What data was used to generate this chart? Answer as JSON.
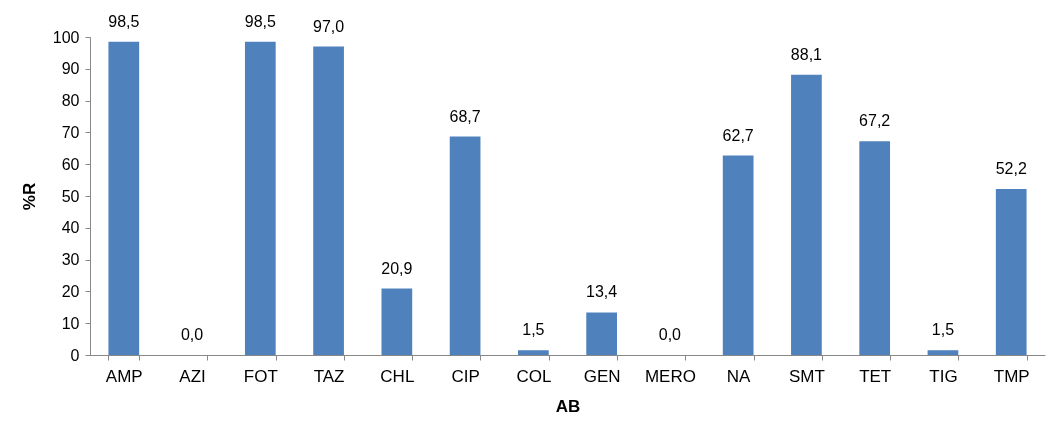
{
  "chart_data": {
    "type": "bar",
    "xlabel": "AB",
    "ylabel": "%R",
    "categories": [
      "AMP",
      "AZI",
      "FOT",
      "TAZ",
      "CHL",
      "CIP",
      "COL",
      "GEN",
      "MERO",
      "NA",
      "SMT",
      "TET",
      "TIG",
      "TMP"
    ],
    "values": [
      98.5,
      0,
      98.5,
      97.0,
      20.9,
      68.7,
      1.5,
      13.4,
      0,
      62.7,
      88.1,
      67.2,
      1.5,
      52.2
    ],
    "value_labels": [
      "98,5",
      "0,0",
      "98,5",
      "97,0",
      "20,9",
      "68,7",
      "1,5",
      "13,4",
      "0,0",
      "62,7",
      "88,1",
      "67,2",
      "1,5",
      "52,2"
    ],
    "color": "#4f81bd",
    "ylim": [
      0,
      100
    ],
    "yticks": [
      0,
      10,
      20,
      30,
      40,
      50,
      60,
      70,
      80,
      90,
      100
    ]
  }
}
